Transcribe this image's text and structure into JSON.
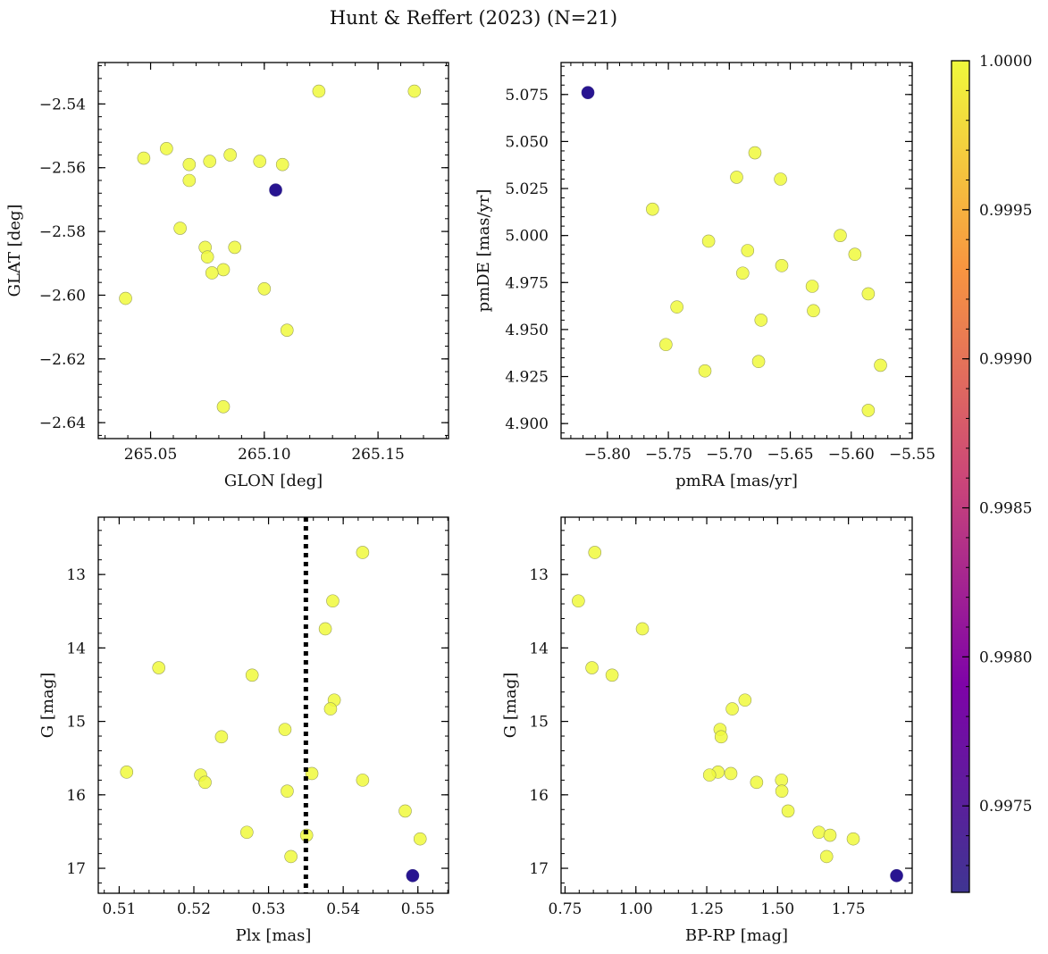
{
  "figure": {
    "title": "Hunt & Reffert (2023) (N=21)"
  },
  "colorbar": {
    "ticks": [
      "0.9975",
      "0.9980",
      "0.9985",
      "0.9990",
      "0.9995",
      "1.0000"
    ],
    "tick_values": [
      0.9975,
      0.998,
      0.9985,
      0.999,
      0.9995,
      1.0
    ],
    "range": [
      0.99721,
      1.0
    ],
    "colormap": "plasma",
    "low_color": "#3f3592",
    "high_color": "#f0f93c"
  },
  "chart_data": [
    {
      "type": "scatter",
      "xlabel": "GLON [deg]",
      "ylabel": "GLAT [deg]",
      "xlim": [
        265.027,
        265.181
      ],
      "ylim": [
        -2.645,
        -2.527
      ],
      "xticks": [
        265.05,
        265.1,
        265.15
      ],
      "xtick_labels": [
        "265.05",
        "265.10",
        "265.15"
      ],
      "yticks": [
        -2.54,
        -2.56,
        -2.58,
        -2.6,
        -2.62,
        -2.64
      ],
      "ytick_labels": [
        "−2.54",
        "−2.56",
        "−2.58",
        "−2.60",
        "−2.62",
        "−2.64"
      ],
      "points": [
        {
          "x": 265.124,
          "y": -2.536,
          "c": 1.0
        },
        {
          "x": 265.166,
          "y": -2.536,
          "c": 1.0
        },
        {
          "x": 265.047,
          "y": -2.557,
          "c": 1.0
        },
        {
          "x": 265.057,
          "y": -2.554,
          "c": 1.0
        },
        {
          "x": 265.067,
          "y": -2.559,
          "c": 1.0
        },
        {
          "x": 265.076,
          "y": -2.558,
          "c": 1.0
        },
        {
          "x": 265.085,
          "y": -2.556,
          "c": 1.0
        },
        {
          "x": 265.098,
          "y": -2.558,
          "c": 1.0
        },
        {
          "x": 265.108,
          "y": -2.559,
          "c": 1.0
        },
        {
          "x": 265.067,
          "y": -2.564,
          "c": 1.0
        },
        {
          "x": 265.063,
          "y": -2.579,
          "c": 1.0
        },
        {
          "x": 265.074,
          "y": -2.585,
          "c": 1.0
        },
        {
          "x": 265.087,
          "y": -2.585,
          "c": 1.0
        },
        {
          "x": 265.075,
          "y": -2.588,
          "c": 1.0
        },
        {
          "x": 265.082,
          "y": -2.592,
          "c": 1.0
        },
        {
          "x": 265.077,
          "y": -2.593,
          "c": 1.0
        },
        {
          "x": 265.1,
          "y": -2.598,
          "c": 1.0
        },
        {
          "x": 265.039,
          "y": -2.601,
          "c": 1.0
        },
        {
          "x": 265.11,
          "y": -2.611,
          "c": 1.0
        },
        {
          "x": 265.082,
          "y": -2.635,
          "c": 1.0
        },
        {
          "x": 265.105,
          "y": -2.567,
          "c": 0.9973
        }
      ]
    },
    {
      "type": "scatter",
      "xlabel": "pmRA [mas/yr]",
      "ylabel": "pmDE [mas/yr]",
      "xlim": [
        -5.838,
        -5.55
      ],
      "ylim": [
        4.892,
        5.092
      ],
      "xticks": [
        -5.8,
        -5.75,
        -5.7,
        -5.65,
        -5.6,
        -5.55
      ],
      "xtick_labels": [
        "−5.80",
        "−5.75",
        "−5.70",
        "−5.65",
        "−5.60",
        "−5.55"
      ],
      "yticks": [
        4.9,
        4.925,
        4.95,
        4.975,
        5.0,
        5.025,
        5.05,
        5.075
      ],
      "ytick_labels": [
        "4.900",
        "4.925",
        "4.950",
        "4.975",
        "5.000",
        "5.025",
        "5.050",
        "5.075"
      ],
      "points": [
        {
          "x": -5.679,
          "y": 5.044,
          "c": 1.0
        },
        {
          "x": -5.694,
          "y": 5.031,
          "c": 1.0
        },
        {
          "x": -5.658,
          "y": 5.03,
          "c": 1.0
        },
        {
          "x": -5.763,
          "y": 5.014,
          "c": 1.0
        },
        {
          "x": -5.609,
          "y": 5.0,
          "c": 1.0
        },
        {
          "x": -5.717,
          "y": 4.997,
          "c": 1.0
        },
        {
          "x": -5.685,
          "y": 4.992,
          "c": 1.0
        },
        {
          "x": -5.597,
          "y": 4.99,
          "c": 1.0
        },
        {
          "x": -5.657,
          "y": 4.984,
          "c": 1.0
        },
        {
          "x": -5.689,
          "y": 4.98,
          "c": 1.0
        },
        {
          "x": -5.632,
          "y": 4.973,
          "c": 1.0
        },
        {
          "x": -5.586,
          "y": 4.969,
          "c": 1.0
        },
        {
          "x": -5.743,
          "y": 4.962,
          "c": 1.0
        },
        {
          "x": -5.631,
          "y": 4.96,
          "c": 1.0
        },
        {
          "x": -5.674,
          "y": 4.955,
          "c": 1.0
        },
        {
          "x": -5.752,
          "y": 4.942,
          "c": 1.0
        },
        {
          "x": -5.676,
          "y": 4.933,
          "c": 1.0
        },
        {
          "x": -5.576,
          "y": 4.931,
          "c": 1.0
        },
        {
          "x": -5.72,
          "y": 4.928,
          "c": 1.0
        },
        {
          "x": -5.586,
          "y": 4.907,
          "c": 1.0
        },
        {
          "x": -5.816,
          "y": 5.076,
          "c": 0.9973
        }
      ]
    },
    {
      "type": "scatter",
      "xlabel": "Plx [mas]",
      "ylabel": "G [mag]",
      "xlim": [
        0.5072,
        0.5541
      ],
      "ylim": [
        17.34,
        12.22
      ],
      "y_inverted": true,
      "xticks": [
        0.51,
        0.52,
        0.53,
        0.54,
        0.55
      ],
      "xtick_labels": [
        "0.51",
        "0.52",
        "0.53",
        "0.54",
        "0.55"
      ],
      "yticks": [
        13,
        14,
        15,
        16,
        17
      ],
      "ytick_labels": [
        "13",
        "14",
        "15",
        "16",
        "17"
      ],
      "vline": 0.535,
      "points": [
        {
          "x": 0.5426,
          "y": 12.7,
          "c": 1.0
        },
        {
          "x": 0.5386,
          "y": 13.36,
          "c": 1.0
        },
        {
          "x": 0.5376,
          "y": 13.74,
          "c": 1.0
        },
        {
          "x": 0.5153,
          "y": 14.27,
          "c": 1.0
        },
        {
          "x": 0.5278,
          "y": 14.37,
          "c": 1.0
        },
        {
          "x": 0.5388,
          "y": 14.71,
          "c": 1.0
        },
        {
          "x": 0.5383,
          "y": 14.83,
          "c": 1.0
        },
        {
          "x": 0.5322,
          "y": 15.11,
          "c": 1.0
        },
        {
          "x": 0.5237,
          "y": 15.21,
          "c": 1.0
        },
        {
          "x": 0.511,
          "y": 15.69,
          "c": 1.0
        },
        {
          "x": 0.5358,
          "y": 15.71,
          "c": 1.0
        },
        {
          "x": 0.5209,
          "y": 15.73,
          "c": 1.0
        },
        {
          "x": 0.5426,
          "y": 15.8,
          "c": 1.0
        },
        {
          "x": 0.5215,
          "y": 15.83,
          "c": 1.0
        },
        {
          "x": 0.5325,
          "y": 15.95,
          "c": 1.0
        },
        {
          "x": 0.5483,
          "y": 16.22,
          "c": 1.0
        },
        {
          "x": 0.5271,
          "y": 16.51,
          "c": 1.0
        },
        {
          "x": 0.5351,
          "y": 16.55,
          "c": 1.0
        },
        {
          "x": 0.5503,
          "y": 16.6,
          "c": 1.0
        },
        {
          "x": 0.533,
          "y": 16.84,
          "c": 1.0
        },
        {
          "x": 0.5493,
          "y": 17.1,
          "c": 0.9973
        }
      ]
    },
    {
      "type": "scatter",
      "xlabel": "BP-RP [mag]",
      "ylabel": "G [mag]",
      "xlim": [
        0.736,
        1.975
      ],
      "ylim": [
        17.34,
        12.22
      ],
      "y_inverted": true,
      "xticks": [
        0.75,
        1.0,
        1.25,
        1.5,
        1.75
      ],
      "xtick_labels": [
        "0.75",
        "1.00",
        "1.25",
        "1.50",
        "1.75"
      ],
      "yticks": [
        13,
        14,
        15,
        16,
        17
      ],
      "ytick_labels": [
        "13",
        "14",
        "15",
        "16",
        "17"
      ],
      "points": [
        {
          "x": 0.855,
          "y": 12.7,
          "c": 1.0
        },
        {
          "x": 0.797,
          "y": 13.36,
          "c": 1.0
        },
        {
          "x": 1.023,
          "y": 13.74,
          "c": 1.0
        },
        {
          "x": 0.845,
          "y": 14.27,
          "c": 1.0
        },
        {
          "x": 0.916,
          "y": 14.37,
          "c": 1.0
        },
        {
          "x": 1.385,
          "y": 14.71,
          "c": 1.0
        },
        {
          "x": 1.34,
          "y": 14.83,
          "c": 1.0
        },
        {
          "x": 1.297,
          "y": 15.11,
          "c": 1.0
        },
        {
          "x": 1.301,
          "y": 15.21,
          "c": 1.0
        },
        {
          "x": 1.29,
          "y": 15.69,
          "c": 1.0
        },
        {
          "x": 1.335,
          "y": 15.71,
          "c": 1.0
        },
        {
          "x": 1.26,
          "y": 15.73,
          "c": 1.0
        },
        {
          "x": 1.514,
          "y": 15.8,
          "c": 1.0
        },
        {
          "x": 1.426,
          "y": 15.83,
          "c": 1.0
        },
        {
          "x": 1.515,
          "y": 15.95,
          "c": 1.0
        },
        {
          "x": 1.537,
          "y": 16.22,
          "c": 1.0
        },
        {
          "x": 1.646,
          "y": 16.51,
          "c": 1.0
        },
        {
          "x": 1.685,
          "y": 16.55,
          "c": 1.0
        },
        {
          "x": 1.767,
          "y": 16.6,
          "c": 1.0
        },
        {
          "x": 1.673,
          "y": 16.84,
          "c": 1.0
        },
        {
          "x": 1.92,
          "y": 17.1,
          "c": 0.9973
        }
      ]
    }
  ]
}
